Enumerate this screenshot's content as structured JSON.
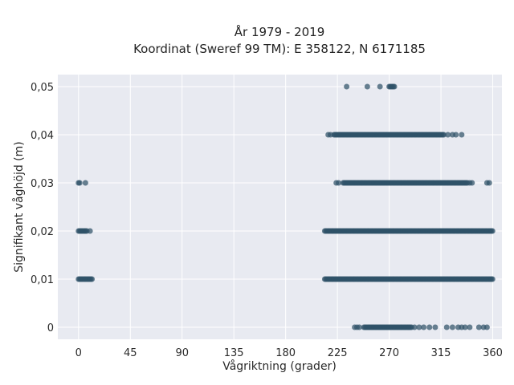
{
  "chart_data": {
    "type": "scatter",
    "title_lines": [
      "År 1979 - 2019",
      "Koordinat (Sweref 99 TM): E 358122, N 6171185"
    ],
    "xlabel": "Vågriktning (grader)",
    "ylabel": "Signifikant våghöjd (m)",
    "xlim": [
      -18,
      368
    ],
    "ylim": [
      -0.0025,
      0.0525
    ],
    "x_ticks": [
      0,
      45,
      90,
      135,
      180,
      225,
      270,
      315,
      360
    ],
    "y_ticks": [
      0,
      0.01,
      0.02,
      0.03,
      0.04,
      0.05
    ],
    "y_tick_labels": [
      "0",
      "0,01",
      "0,02",
      "0,03",
      "0,04",
      "0,05"
    ],
    "grid": true,
    "color": "#2f5268",
    "bands": [
      {
        "y": 0.05,
        "x_start": 270,
        "x_end": 275,
        "points": [
          233,
          251,
          262
        ]
      },
      {
        "y": 0.04,
        "x_start": 222,
        "x_end": 318,
        "points": [
          217,
          219,
          321,
          325,
          328,
          333
        ]
      },
      {
        "y": 0.03,
        "x_start": 230,
        "x_end": 338,
        "points": [
          224,
          226,
          340,
          342,
          355,
          357
        ]
      },
      {
        "y": 0.02,
        "x_start": 214,
        "x_end": 360,
        "points": []
      },
      {
        "y": 0.01,
        "x_start": 214,
        "x_end": 360,
        "points": []
      },
      {
        "y": 0.0,
        "x_start": 248,
        "x_end": 290,
        "points": [
          240,
          242,
          244,
          292,
          296,
          300,
          305,
          310,
          320,
          325,
          330,
          333,
          336,
          340,
          348,
          352,
          355
        ]
      },
      {
        "y": 0.03,
        "x_start": 0,
        "x_end": 0,
        "points": [
          1,
          6
        ]
      },
      {
        "y": 0.02,
        "x_start": 0,
        "x_end": 8,
        "points": [
          10
        ]
      },
      {
        "y": 0.01,
        "x_start": 0,
        "x_end": 12,
        "points": []
      }
    ]
  }
}
